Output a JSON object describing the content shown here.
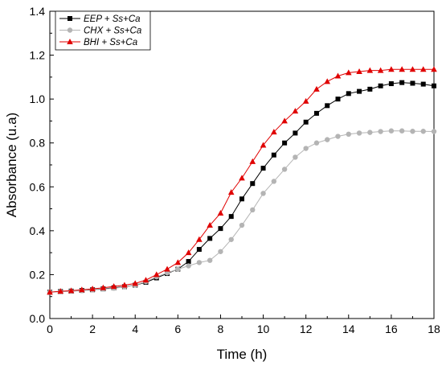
{
  "chart_data": {
    "type": "line",
    "title": "",
    "xlabel": "Time (h)",
    "ylabel": "Absorbance (u.a)",
    "xlim": [
      0,
      18
    ],
    "ylim": [
      0.0,
      1.4
    ],
    "xticks": [
      "0",
      "2",
      "4",
      "6",
      "8",
      "10",
      "12",
      "14",
      "16",
      "18"
    ],
    "yticks": [
      "0.0",
      "0.2",
      "0.4",
      "0.6",
      "0.8",
      "1.0",
      "1.2",
      "1.4"
    ],
    "grid": false,
    "legend_position": "top-left",
    "x": [
      0,
      0.5,
      1,
      1.5,
      2,
      2.5,
      3,
      3.5,
      4,
      4.5,
      5,
      5.5,
      6,
      6.5,
      7,
      7.5,
      8,
      8.5,
      9,
      9.5,
      10,
      10.5,
      11,
      11.5,
      12,
      12.5,
      13,
      13.5,
      14,
      14.5,
      15,
      15.5,
      16,
      16.5,
      17,
      17.5,
      18
    ],
    "series": [
      {
        "name": "EEP + Ss+Ca",
        "color": "#000000",
        "marker": "square",
        "values": [
          0.12,
          0.123,
          0.125,
          0.128,
          0.131,
          0.135,
          0.14,
          0.145,
          0.152,
          0.165,
          0.185,
          0.205,
          0.225,
          0.26,
          0.315,
          0.365,
          0.41,
          0.465,
          0.545,
          0.615,
          0.685,
          0.745,
          0.8,
          0.845,
          0.895,
          0.935,
          0.97,
          1.0,
          1.025,
          1.035,
          1.045,
          1.06,
          1.07,
          1.075,
          1.072,
          1.068,
          1.06
        ]
      },
      {
        "name": "CHX + Ss+Ca",
        "color": "#b4b4b4",
        "marker": "circle",
        "values": [
          0.12,
          0.122,
          0.124,
          0.127,
          0.13,
          0.134,
          0.138,
          0.144,
          0.152,
          0.168,
          0.19,
          0.208,
          0.225,
          0.24,
          0.255,
          0.265,
          0.305,
          0.36,
          0.425,
          0.495,
          0.57,
          0.625,
          0.68,
          0.735,
          0.775,
          0.8,
          0.815,
          0.83,
          0.84,
          0.845,
          0.848,
          0.852,
          0.855,
          0.855,
          0.853,
          0.853,
          0.852
        ]
      },
      {
        "name": "BHI + Ss+Ca",
        "color": "#e00000",
        "marker": "triangle",
        "values": [
          0.12,
          0.124,
          0.127,
          0.131,
          0.135,
          0.14,
          0.146,
          0.152,
          0.16,
          0.175,
          0.2,
          0.225,
          0.255,
          0.3,
          0.36,
          0.425,
          0.48,
          0.575,
          0.64,
          0.715,
          0.79,
          0.85,
          0.9,
          0.945,
          0.99,
          1.045,
          1.08,
          1.105,
          1.12,
          1.125,
          1.13,
          1.13,
          1.135,
          1.135,
          1.135,
          1.135,
          1.135
        ]
      }
    ]
  }
}
